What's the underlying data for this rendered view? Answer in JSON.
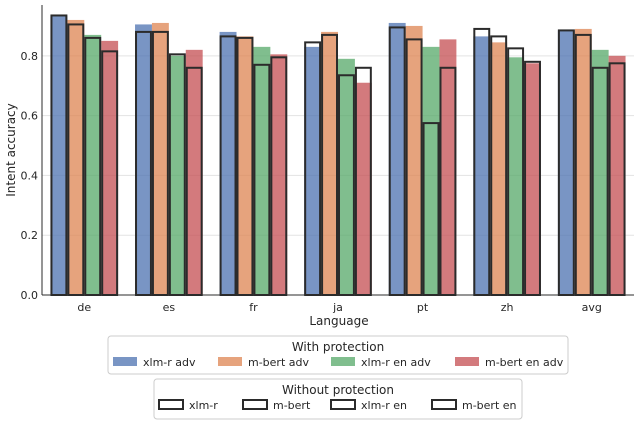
{
  "chart_data": {
    "type": "bar",
    "xlabel": "Language",
    "ylabel": "Intent accuracy",
    "ylim": [
      0,
      0.97
    ],
    "yticks": [
      "0.0",
      "0.2",
      "0.4",
      "0.6",
      "0.8"
    ],
    "ytick_values": [
      0,
      0.2,
      0.4,
      0.6,
      0.8
    ],
    "grid": "horizontal",
    "categories": [
      "de",
      "es",
      "fr",
      "ja",
      "pt",
      "zh",
      "avg"
    ],
    "series_with_protection": [
      {
        "name": "xlm-r adv",
        "color": "#4c72b0",
        "values": [
          0.935,
          0.905,
          0.88,
          0.83,
          0.91,
          0.865,
          0.885
        ]
      },
      {
        "name": "m-bert adv",
        "color": "#dd8452",
        "values": [
          0.92,
          0.91,
          0.865,
          0.88,
          0.9,
          0.845,
          0.89
        ]
      },
      {
        "name": "xlm-r en adv",
        "color": "#55a868",
        "values": [
          0.87,
          0.8,
          0.83,
          0.79,
          0.83,
          0.795,
          0.82
        ]
      },
      {
        "name": "m-bert en adv",
        "color": "#c44e52",
        "values": [
          0.85,
          0.82,
          0.805,
          0.71,
          0.855,
          0.775,
          0.8
        ]
      }
    ],
    "series_without_protection": [
      {
        "name": "xlm-r",
        "values": [
          0.935,
          0.88,
          0.865,
          0.845,
          0.895,
          0.89,
          0.885
        ]
      },
      {
        "name": "m-bert",
        "values": [
          0.905,
          0.88,
          0.86,
          0.87,
          0.855,
          0.865,
          0.87
        ]
      },
      {
        "name": "xlm-r en",
        "values": [
          0.86,
          0.805,
          0.77,
          0.735,
          0.575,
          0.825,
          0.76
        ]
      },
      {
        "name": "m-bert en",
        "values": [
          0.815,
          0.76,
          0.795,
          0.76,
          0.76,
          0.78,
          0.775
        ]
      }
    ],
    "legends": [
      {
        "title": "With protection",
        "entries": [
          "xlm-r adv",
          "m-bert adv",
          "xlm-r en adv",
          "m-bert en adv"
        ]
      },
      {
        "title": "Without protection",
        "entries": [
          "xlm-r",
          "m-bert",
          "xlm-r en",
          "m-bert en"
        ]
      }
    ],
    "legend_placement": "bottom-center"
  }
}
